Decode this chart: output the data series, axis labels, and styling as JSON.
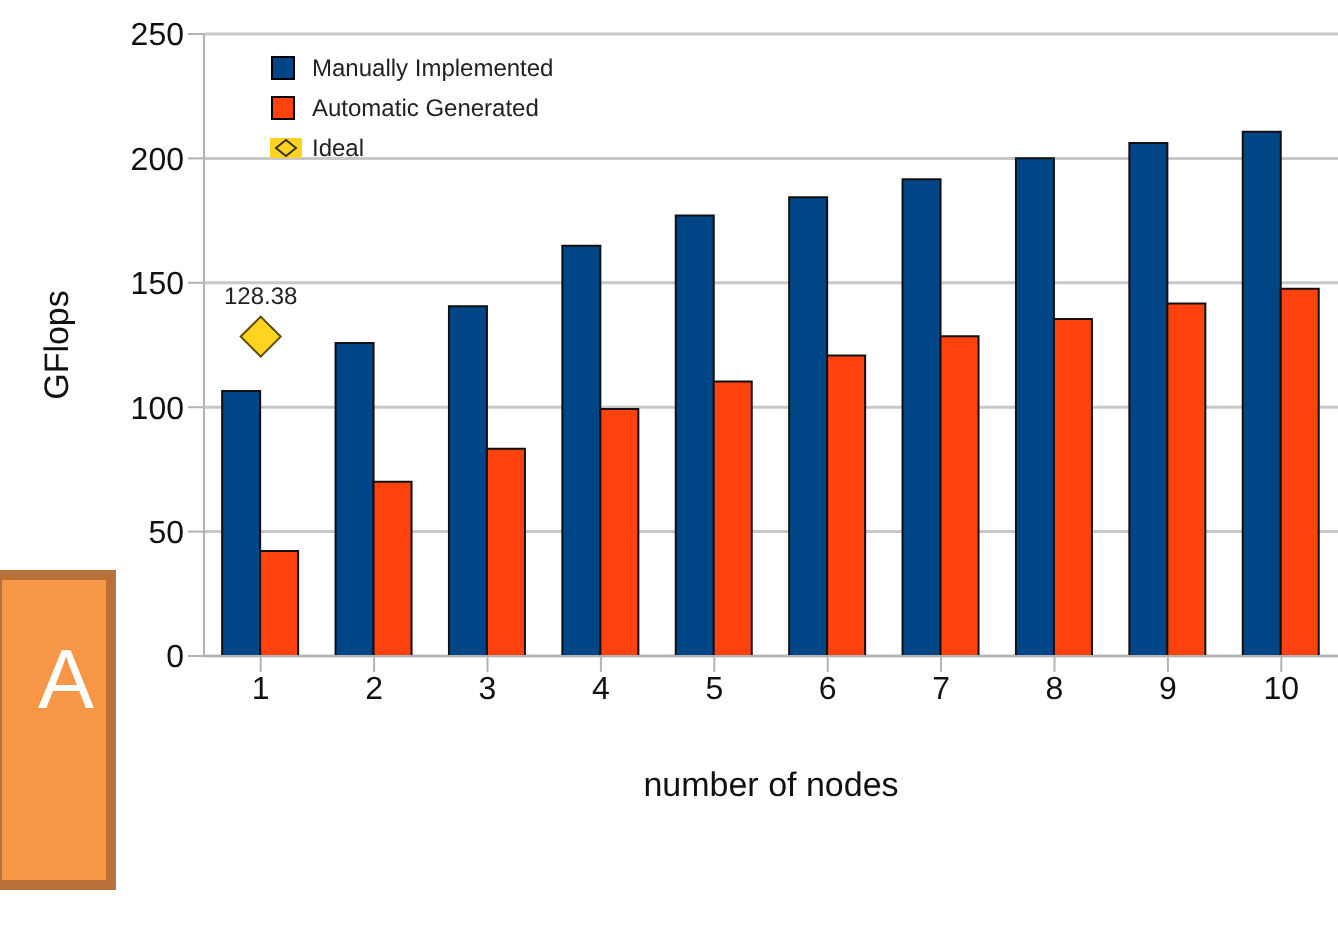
{
  "chart_data": {
    "type": "bar",
    "xlabel": "number of nodes",
    "ylabel": "GFlops",
    "categories": [
      "1",
      "2",
      "3",
      "4",
      "5",
      "6",
      "7",
      "8",
      "9",
      "10"
    ],
    "series": [
      {
        "name": "Manually Implemented",
        "color": "#004586",
        "values": [
          106.5,
          125.8,
          140.6,
          164.9,
          177,
          184.4,
          191.6,
          200.1,
          206.2,
          210.7
        ]
      },
      {
        "name": "Automatic Generated",
        "color": "#ff420e",
        "values": [
          42.2,
          70,
          83.3,
          99.3,
          110.3,
          120.8,
          128.5,
          135.4,
          141.7,
          147.6
        ]
      },
      {
        "name": "Ideal",
        "type": "scatter",
        "marker": "diamond",
        "color": "#ffd320",
        "values": [
          128.38,
          null,
          null,
          null,
          null,
          null,
          null,
          null,
          null,
          null
        ],
        "value_labels": [
          "128.38",
          null,
          null,
          null,
          null,
          null,
          null,
          null,
          null,
          null
        ]
      }
    ],
    "ylim": [
      0,
      250
    ],
    "yticks": [
      0,
      50,
      100,
      150,
      200,
      250
    ],
    "grid": "y",
    "legend": "top left",
    "annotations": [
      "A"
    ]
  }
}
